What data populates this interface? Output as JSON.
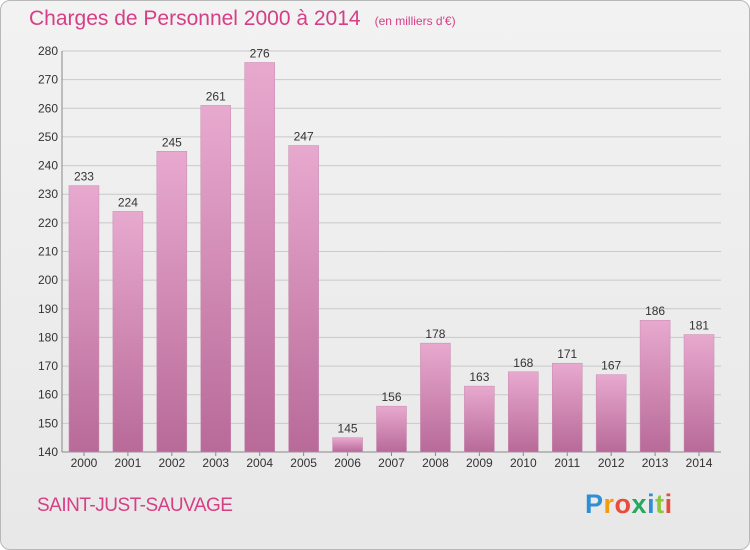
{
  "header": {
    "title": "Charges de Personnel 2000 à 2014",
    "unit_note": "(en milliers d'€)"
  },
  "footer": {
    "city": "SAINT-JUST-SAUVAGE",
    "logo": "Proxiti"
  },
  "colors": {
    "accent": "#d63e86",
    "bar_top": "#e8a9cf",
    "bar_bottom": "#b86a98"
  },
  "chart_data": {
    "type": "bar",
    "categories": [
      "2000",
      "2001",
      "2002",
      "2003",
      "2004",
      "2005",
      "2006",
      "2007",
      "2008",
      "2009",
      "2010",
      "2011",
      "2012",
      "2013",
      "2014"
    ],
    "values": [
      233,
      224,
      245,
      261,
      276,
      247,
      145,
      156,
      178,
      163,
      168,
      171,
      167,
      186,
      181
    ],
    "title": "Charges de Personnel 2000 à 2014",
    "ylim": [
      140,
      280
    ],
    "yticks": [
      140,
      150,
      160,
      170,
      180,
      190,
      200,
      210,
      220,
      230,
      240,
      250,
      260,
      270,
      280
    ],
    "grid": true,
    "legend": "none"
  }
}
